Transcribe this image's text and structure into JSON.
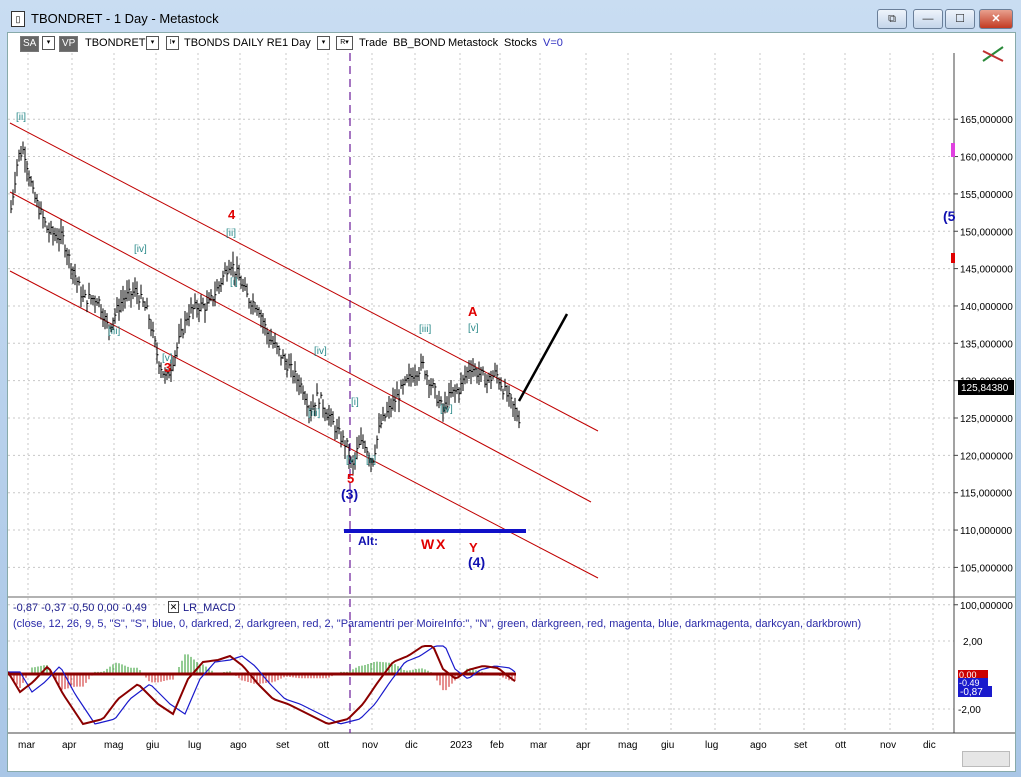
{
  "window": {
    "title": "TBONDRET - 1 Day - Metastock",
    "buttons": {
      "restore": "⧉",
      "minimize": "—",
      "maximize": "☐",
      "close": "✕"
    }
  },
  "toolbar": {
    "sa": "SA",
    "vp": "VP",
    "symbol": "TBONDRET",
    "drop1": "▾",
    "i_box": "I▾",
    "desc": "TBONDS DAILY RE",
    "period": "1 Day",
    "drop2": "▾",
    "r_box": "R▾",
    "trade": "Trade",
    "bb": "BB_BOND",
    "metastock": "Metastock",
    "stocks": "Stocks",
    "v": "V=0"
  },
  "price_axis": {
    "ticks": [
      "165,000000",
      "160,000000",
      "155,000000",
      "150,000000",
      "145,000000",
      "140,000000",
      "135,000000",
      "130,000000",
      "125,000000",
      "120,000000",
      "115,000000",
      "110,000000",
      "105,000000",
      "100,000000"
    ],
    "last_price": "125,84380"
  },
  "time_axis": [
    "mar",
    "apr",
    "mag",
    "giu",
    "lug",
    "ago",
    "set",
    "ott",
    "nov",
    "dic",
    "2023",
    "feb",
    "mar",
    "apr",
    "mag",
    "giu",
    "lug",
    "ago",
    "set",
    "ott",
    "nov",
    "dic"
  ],
  "indicator": {
    "values_line": "-0,87  -0,37  -0,50  0,00  -0,49",
    "name": "LR_MACD",
    "params": "(close,  12,  26,  9,  5,  \"S\",  \"S\",  blue,  0,  darkred,  2,  darkgreen,  red,  2,  \"Paramentri per MoireInfo:\",  \"N\",  green,  darkgreen,  red,  magenta,  blue,  darkmagenta,  darkcyan,  darkbrown)",
    "ticks": [
      "2,00",
      "-2,00"
    ],
    "badge_a": "0,00",
    "badge_b": "-0,49",
    "badge_c": "-0,87"
  },
  "annotations": {
    "red_4": "4",
    "red_3": "3",
    "red_5": "5",
    "red_A": "A",
    "red_W": "W",
    "red_X": "X",
    "red_Y": "Y",
    "blue_3": "(3)",
    "blue_4": "(4)",
    "blue_alt": "Alt:",
    "blue_edge": "(5",
    "teal_ii_a": "[ii]",
    "teal_iv_a": "[iv]",
    "teal_iii_a": "[iii]",
    "teal_v_a": "[v]",
    "teal_ii_b": "[ii]",
    "teal_i_b": "[i]",
    "teal_iv_b": "[iv]",
    "teal_iii_b": "[iii]",
    "teal_i_c": "[i]",
    "teal_v_c": "[v]",
    "teal_ii_c": "[ii]",
    "teal_iii_c": "[iii]",
    "teal_v_d": "[v]",
    "teal_iv_c": "[iv]"
  },
  "chart_data": {
    "type": "bar",
    "price_ylim": [
      98,
      172
    ],
    "price_bars_approx": [
      {
        "x": "mar",
        "close": 158
      },
      {
        "x": "apr",
        "close": 147
      },
      {
        "x": "mag",
        "close": 140
      },
      {
        "x": "giu",
        "close": 132
      },
      {
        "x": "lug",
        "close": 140
      },
      {
        "x": "ago",
        "close": 145
      },
      {
        "x": "set",
        "close": 131
      },
      {
        "x": "ott",
        "close": 121
      },
      {
        "x": "nov",
        "close": 124
      },
      {
        "x": "dic",
        "close": 131
      },
      {
        "x": "2023",
        "close": 126
      },
      {
        "x": "feb",
        "close": 127
      }
    ],
    "colors": {
      "channel": "#c00000",
      "wave_red": "#e00000",
      "wave_blue": "#1010b0",
      "wave_teal": "#2a8a8a",
      "macd_line": "#8b0000",
      "signal_line": "#0000cc"
    }
  }
}
